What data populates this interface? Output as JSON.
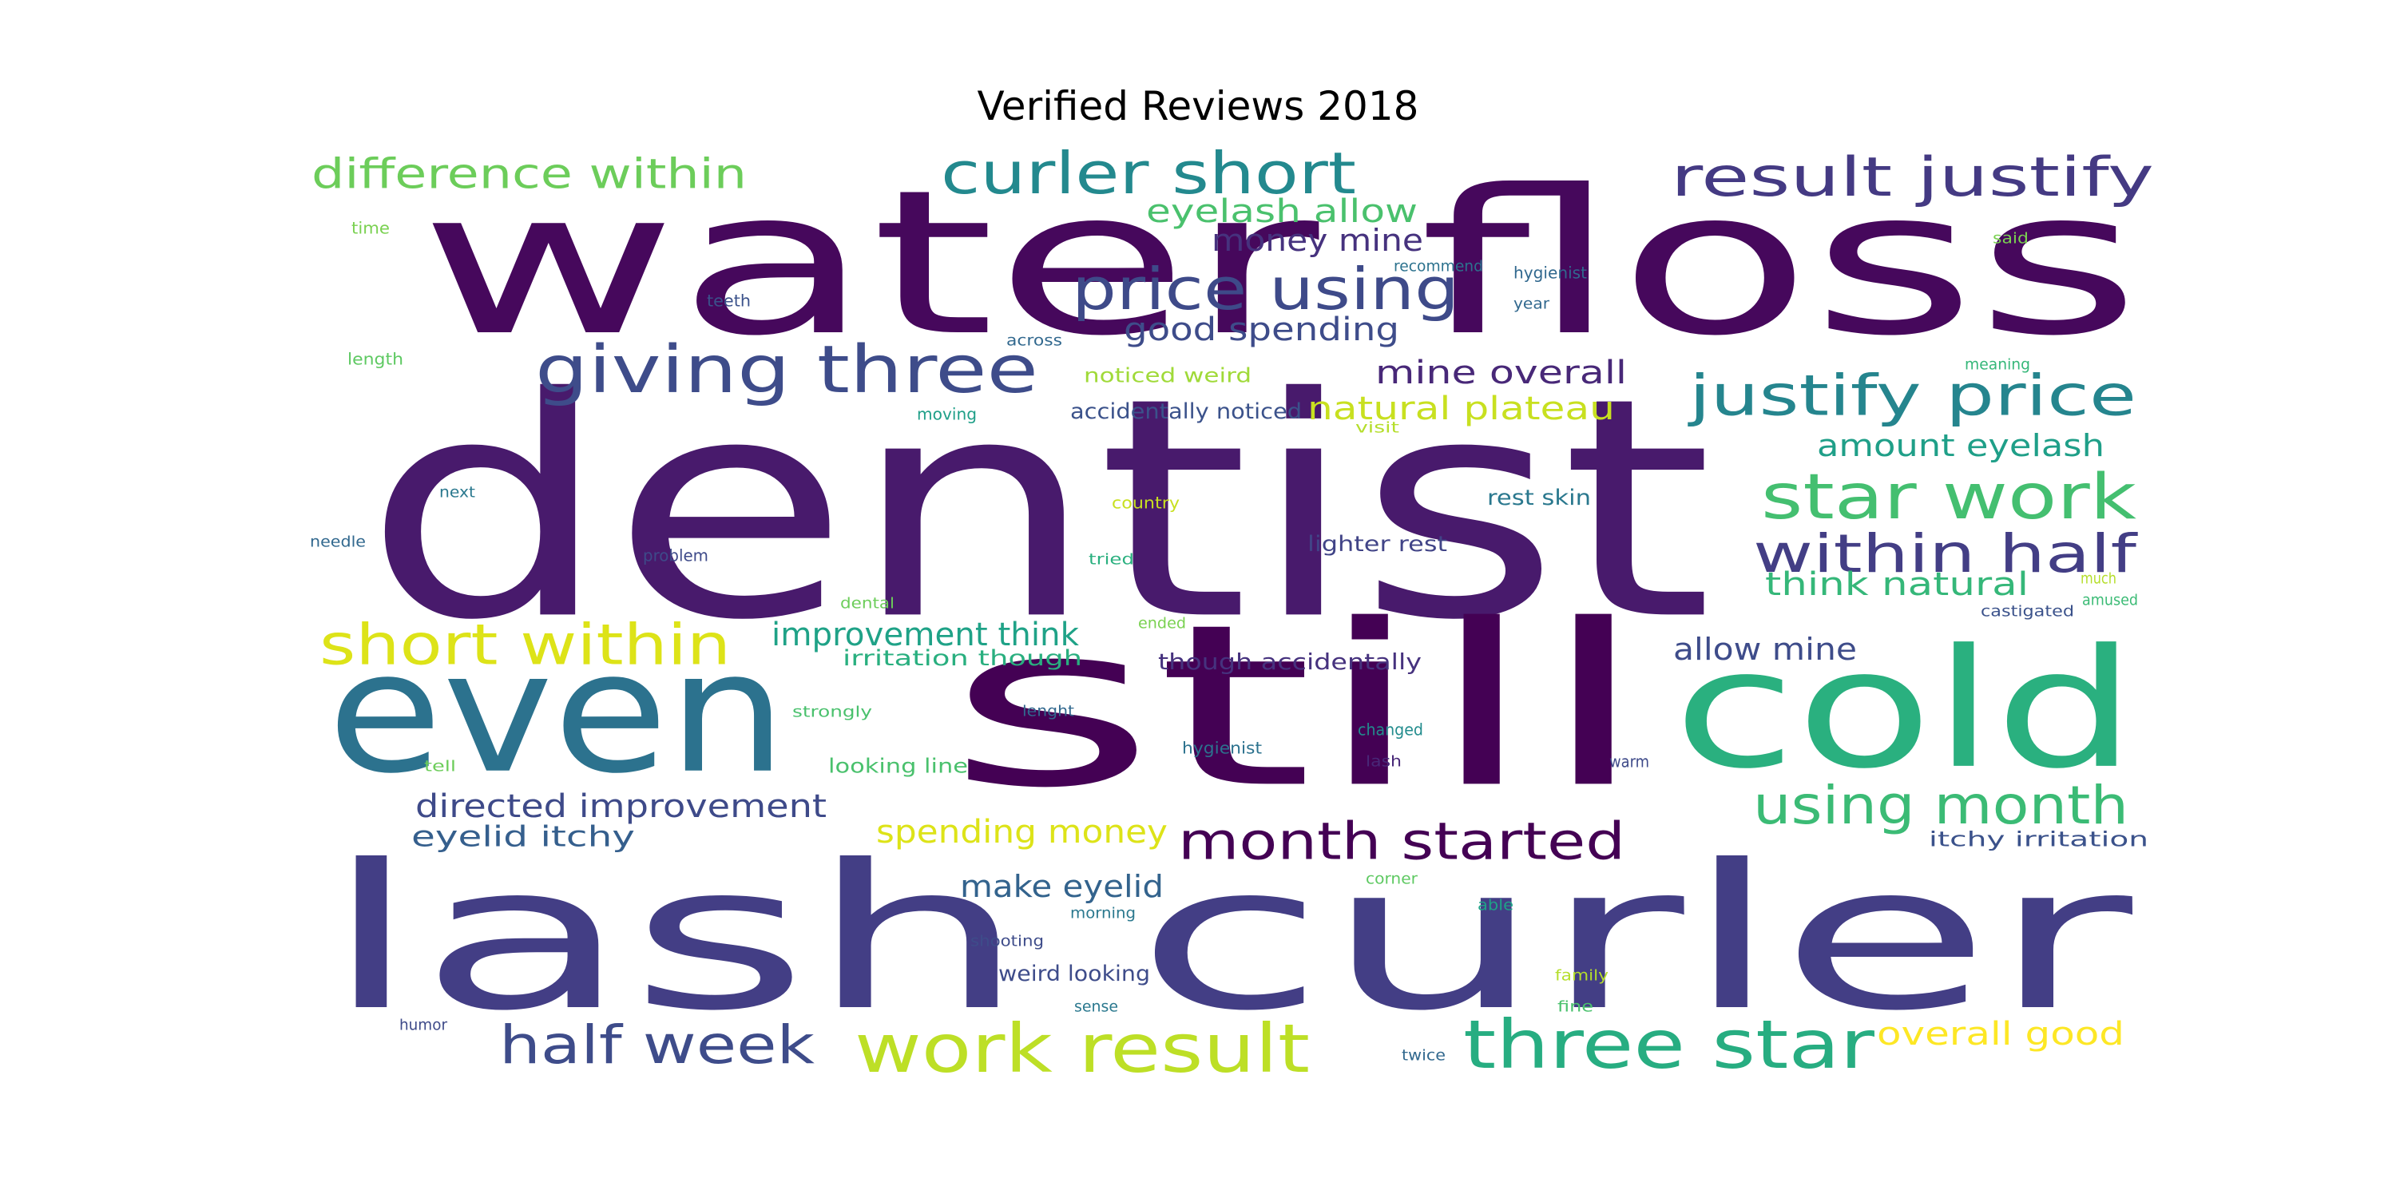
{
  "title": "Verified Reviews 2018",
  "words": [
    {
      "text": "dentist",
      "color": "#481a6c"
    },
    {
      "text": "water floss",
      "color": "#46085c"
    },
    {
      "text": "lash curler",
      "color": "#433e85"
    },
    {
      "text": "still",
      "color": "#440154"
    },
    {
      "text": "even",
      "color": "#2c728e"
    },
    {
      "text": "cold",
      "color": "#2ab07f"
    },
    {
      "text": "giving three",
      "color": "#3e4c8a"
    },
    {
      "text": "curler short",
      "color": "#23898e"
    },
    {
      "text": "result justify",
      "color": "#443a83"
    },
    {
      "text": "difference within",
      "color": "#6ccd5a"
    },
    {
      "text": "price using",
      "color": "#3e4a89"
    },
    {
      "text": "justify price",
      "color": "#25858e"
    },
    {
      "text": "star work",
      "color": "#44bf70"
    },
    {
      "text": "within half",
      "color": "#433e85"
    },
    {
      "text": "short within",
      "color": "#dde318"
    },
    {
      "text": "work result",
      "color": "#bddf26"
    },
    {
      "text": "three star",
      "color": "#27ad81"
    },
    {
      "text": "half week",
      "color": "#3e4c8a"
    },
    {
      "text": "month started",
      "color": "#440154"
    },
    {
      "text": "using month",
      "color": "#3bbb75"
    },
    {
      "text": "eyelash allow",
      "color": "#4ac16d"
    },
    {
      "text": "money mine",
      "color": "#46327e"
    },
    {
      "text": "good spending",
      "color": "#3e4c8a"
    },
    {
      "text": "mine overall",
      "color": "#482878"
    },
    {
      "text": "natural plateau",
      "color": "#c8e020"
    },
    {
      "text": "amount eyelash",
      "color": "#1f9f88"
    },
    {
      "text": "think natural",
      "color": "#35b779"
    },
    {
      "text": "improvement think",
      "color": "#1fa287"
    },
    {
      "text": "allow mine",
      "color": "#3e4c8a"
    },
    {
      "text": "directed improvement",
      "color": "#3e4a89"
    },
    {
      "text": "eyelid itchy",
      "color": "#355f8d"
    },
    {
      "text": "spending money",
      "color": "#dde318"
    },
    {
      "text": "make eyelid",
      "color": "#33638d"
    },
    {
      "text": "overall good",
      "color": "#fde725"
    },
    {
      "text": "lighter rest",
      "color": "#414487"
    },
    {
      "text": "rest skin",
      "color": "#2a788e"
    },
    {
      "text": "irritation though",
      "color": "#29af7f"
    },
    {
      "text": "though accidentally",
      "color": "#46327e"
    },
    {
      "text": "accidentally noticed",
      "color": "#3b528b"
    },
    {
      "text": "noticed weird",
      "color": "#a0da39"
    },
    {
      "text": "looking line",
      "color": "#4ac16d"
    },
    {
      "text": "weird looking",
      "color": "#3e4c8a"
    },
    {
      "text": "itchy irritation",
      "color": "#3b528b"
    },
    {
      "text": "time",
      "color": "#7ad151"
    },
    {
      "text": "teeth",
      "color": "#3b528b"
    },
    {
      "text": "length",
      "color": "#5ec962"
    },
    {
      "text": "across",
      "color": "#31688e"
    },
    {
      "text": "moving",
      "color": "#1f9f88"
    },
    {
      "text": "next",
      "color": "#2a788e"
    },
    {
      "text": "needle",
      "color": "#31688e"
    },
    {
      "text": "country",
      "color": "#c8e020"
    },
    {
      "text": "problem",
      "color": "#3e4a89"
    },
    {
      "text": "tried",
      "color": "#2ab07f"
    },
    {
      "text": "dental",
      "color": "#6ccd5a"
    },
    {
      "text": "ended",
      "color": "#7ad151"
    },
    {
      "text": "strongly",
      "color": "#4ac16d"
    },
    {
      "text": "lenght",
      "color": "#31688e"
    },
    {
      "text": "hygienist",
      "color": "#2c728e"
    },
    {
      "text": "tell",
      "color": "#6ccd5a"
    },
    {
      "text": "changed",
      "color": "#228c8d"
    },
    {
      "text": "lash",
      "color": "#482878"
    },
    {
      "text": "warm",
      "color": "#3e4a89"
    },
    {
      "text": "recommend",
      "color": "#2c728e"
    },
    {
      "text": "visit",
      "color": "#b5de2b"
    },
    {
      "text": "hygienist",
      "color": "#31688e"
    },
    {
      "text": "year",
      "color": "#31688e"
    },
    {
      "text": "said",
      "color": "#7ad151"
    },
    {
      "text": "meaning",
      "color": "#35b779"
    },
    {
      "text": "much",
      "color": "#b5de2b"
    },
    {
      "text": "amused",
      "color": "#3bbb75"
    },
    {
      "text": "castigated",
      "color": "#3b528b"
    },
    {
      "text": "corner",
      "color": "#5ec962"
    },
    {
      "text": "able",
      "color": "#1fa287"
    },
    {
      "text": "morning",
      "color": "#2a788e"
    },
    {
      "text": "shooting",
      "color": "#3e4c8a"
    },
    {
      "text": "family",
      "color": "#b5de2b"
    },
    {
      "text": "sense",
      "color": "#2a788e"
    },
    {
      "text": "fine",
      "color": "#4ac16d"
    },
    {
      "text": "humor",
      "color": "#3e4a89"
    },
    {
      "text": "twice",
      "color": "#31688e"
    }
  ]
}
